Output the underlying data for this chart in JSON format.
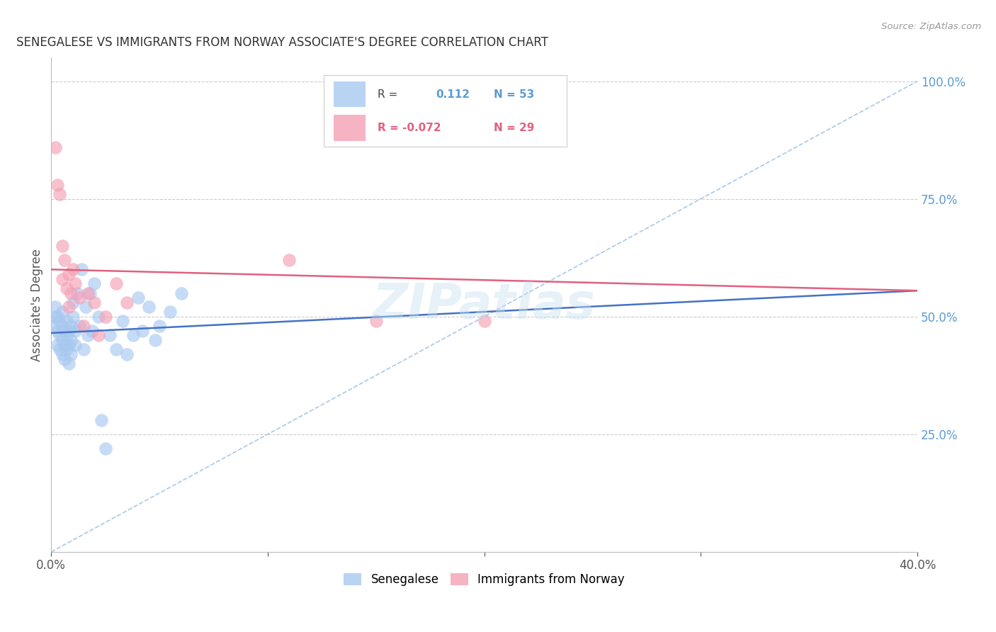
{
  "title": "SENEGALESE VS IMMIGRANTS FROM NORWAY ASSOCIATE'S DEGREE CORRELATION CHART",
  "source": "Source: ZipAtlas.com",
  "ylabel": "Associate's Degree",
  "blue_color": "#A8C8F0",
  "pink_color": "#F4A0B5",
  "blue_line_color": "#4472C4",
  "pink_line_color": "#E06080",
  "dashed_line_color": "#A8C8E8",
  "watermark": "ZIPatlas",
  "blue_scatter_x": [
    0.001,
    0.002,
    0.002,
    0.003,
    0.003,
    0.003,
    0.004,
    0.004,
    0.004,
    0.005,
    0.005,
    0.005,
    0.005,
    0.006,
    0.006,
    0.006,
    0.007,
    0.007,
    0.007,
    0.008,
    0.008,
    0.008,
    0.009,
    0.009,
    0.009,
    0.01,
    0.01,
    0.011,
    0.011,
    0.012,
    0.013,
    0.014,
    0.015,
    0.016,
    0.017,
    0.018,
    0.019,
    0.02,
    0.022,
    0.023,
    0.025,
    0.027,
    0.03,
    0.033,
    0.035,
    0.038,
    0.04,
    0.042,
    0.045,
    0.048,
    0.05,
    0.055,
    0.06
  ],
  "blue_scatter_y": [
    0.48,
    0.5,
    0.52,
    0.44,
    0.47,
    0.5,
    0.43,
    0.46,
    0.49,
    0.42,
    0.45,
    0.48,
    0.51,
    0.41,
    0.44,
    0.47,
    0.43,
    0.46,
    0.49,
    0.4,
    0.44,
    0.47,
    0.42,
    0.45,
    0.48,
    0.5,
    0.53,
    0.44,
    0.47,
    0.55,
    0.48,
    0.6,
    0.43,
    0.52,
    0.46,
    0.55,
    0.47,
    0.57,
    0.5,
    0.28,
    0.22,
    0.46,
    0.43,
    0.49,
    0.42,
    0.46,
    0.54,
    0.47,
    0.52,
    0.45,
    0.48,
    0.51,
    0.55
  ],
  "pink_scatter_x": [
    0.002,
    0.003,
    0.004,
    0.005,
    0.005,
    0.006,
    0.007,
    0.008,
    0.008,
    0.009,
    0.01,
    0.011,
    0.013,
    0.015,
    0.017,
    0.02,
    0.022,
    0.025,
    0.03,
    0.035,
    0.11,
    0.15,
    0.2
  ],
  "pink_scatter_y": [
    0.86,
    0.78,
    0.76,
    0.65,
    0.58,
    0.62,
    0.56,
    0.59,
    0.52,
    0.55,
    0.6,
    0.57,
    0.54,
    0.48,
    0.55,
    0.53,
    0.46,
    0.5,
    0.57,
    0.53,
    0.62,
    0.49,
    0.49
  ],
  "xlim": [
    0.0,
    0.4
  ],
  "ylim": [
    0.0,
    1.05
  ],
  "blue_trend_x0": 0.0,
  "blue_trend_y0": 0.465,
  "blue_trend_x1": 0.4,
  "blue_trend_y1": 0.555,
  "pink_trend_x0": 0.0,
  "pink_trend_y0": 0.6,
  "pink_trend_x1": 0.4,
  "pink_trend_y1": 0.555
}
